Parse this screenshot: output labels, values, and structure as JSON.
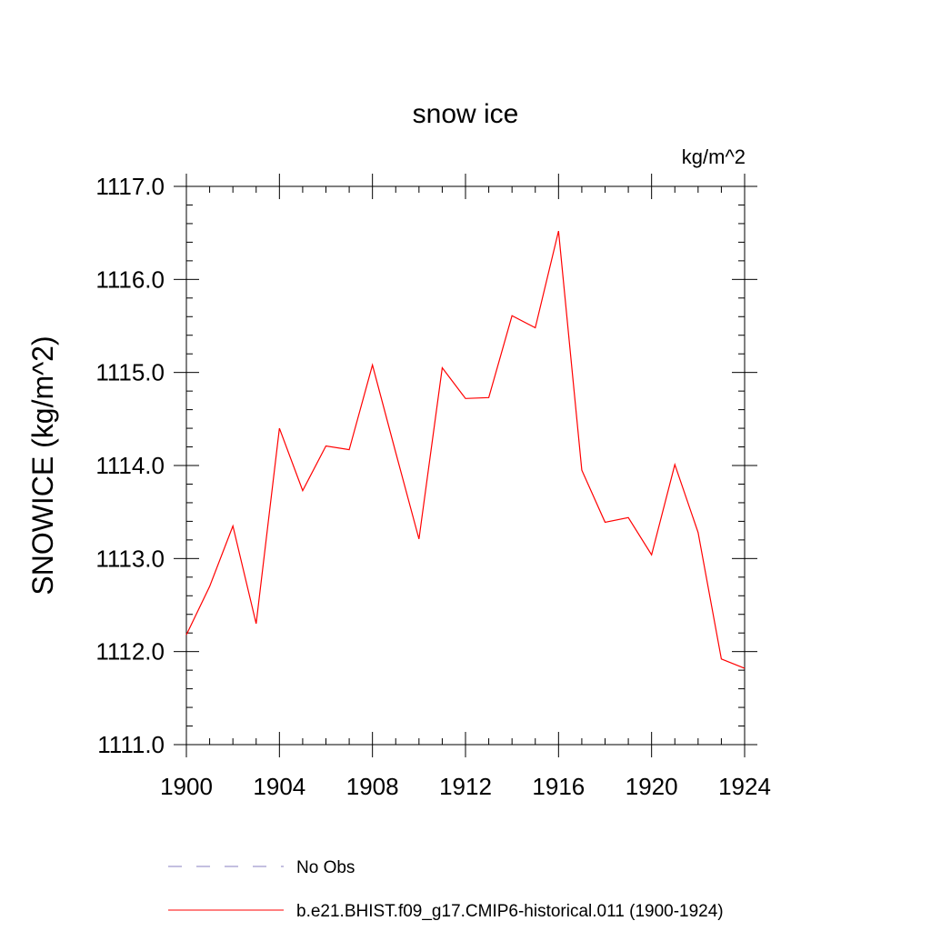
{
  "chart_data": {
    "type": "line",
    "title": "snow ice",
    "units_label": "kg/m^2",
    "ylabel": "SNOWICE  (kg/m^2)",
    "xlabel": "",
    "xlim": [
      1900,
      1924
    ],
    "ylim": [
      1111.0,
      1117.0
    ],
    "x_ticks": [
      "1900",
      "1904",
      "1908",
      "1912",
      "1916",
      "1920",
      "1924"
    ],
    "y_ticks": [
      "1111.0",
      "1112.0",
      "1113.0",
      "1114.0",
      "1115.0",
      "1116.0",
      "1117.0"
    ],
    "grid": false,
    "legend_position": "bottom",
    "series": [
      {
        "name": "No Obs",
        "color": "#8a7fc0",
        "style": "dashed",
        "values": []
      },
      {
        "name": "b.e21.BHIST.f09_g17.CMIP6-historical.011 (1900-1924)",
        "color": "#ff0000",
        "style": "solid",
        "x": [
          1900,
          1901,
          1902,
          1903,
          1904,
          1905,
          1906,
          1907,
          1908,
          1909,
          1910,
          1911,
          1912,
          1913,
          1914,
          1915,
          1916,
          1917,
          1918,
          1919,
          1920,
          1921,
          1922,
          1923,
          1924
        ],
        "values": [
          1112.18,
          1112.7,
          1113.35,
          1112.3,
          1114.4,
          1113.73,
          1114.21,
          1114.17,
          1115.08,
          1114.14,
          1113.21,
          1115.05,
          1114.72,
          1114.73,
          1115.61,
          1115.48,
          1116.52,
          1113.95,
          1113.39,
          1113.44,
          1113.04,
          1114.01,
          1113.28,
          1111.92,
          1111.82
        ]
      }
    ]
  }
}
